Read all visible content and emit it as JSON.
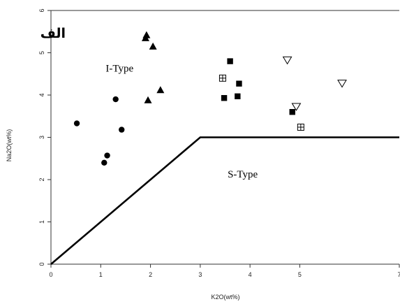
{
  "chart_data": {
    "type": "scatter",
    "panel_label": "الف",
    "xlabel": "K2O(wt%)",
    "ylabel": "Na2O(wt%)",
    "xlim": [
      0,
      7
    ],
    "ylim": [
      0,
      6
    ],
    "x_ticks": [
      0,
      1,
      2,
      3,
      4,
      5,
      7
    ],
    "y_ticks": [
      0,
      1,
      2,
      3,
      4,
      5,
      6
    ],
    "grid": false,
    "region_labels": [
      {
        "text": "I-Type",
        "x": 1.1,
        "y": 4.55
      },
      {
        "text": "S-Type",
        "x": 3.55,
        "y": 2.05
      }
    ],
    "boundary_line": {
      "x": [
        0,
        3,
        7
      ],
      "y": [
        0,
        3,
        3
      ]
    },
    "series": [
      {
        "marker": "circle",
        "points": [
          [
            0.52,
            3.33
          ],
          [
            1.3,
            3.9
          ],
          [
            1.42,
            3.18
          ],
          [
            1.13,
            2.57
          ],
          [
            1.07,
            2.4
          ]
        ]
      },
      {
        "marker": "triangle-up",
        "points": [
          [
            1.92,
            5.42
          ],
          [
            1.9,
            5.35
          ],
          [
            2.05,
            5.15
          ],
          [
            2.2,
            4.12
          ],
          [
            1.95,
            3.88
          ]
        ]
      },
      {
        "marker": "square",
        "points": [
          [
            3.6,
            4.8
          ],
          [
            3.78,
            4.27
          ],
          [
            3.48,
            3.93
          ],
          [
            3.75,
            3.97
          ],
          [
            4.85,
            3.6
          ]
        ]
      },
      {
        "marker": "boxed-plus",
        "points": [
          [
            3.45,
            4.4
          ],
          [
            5.02,
            3.24
          ]
        ]
      },
      {
        "marker": "triangle-down",
        "points": [
          [
            4.75,
            4.82
          ],
          [
            4.93,
            3.72
          ],
          [
            5.85,
            4.27
          ]
        ]
      }
    ]
  }
}
